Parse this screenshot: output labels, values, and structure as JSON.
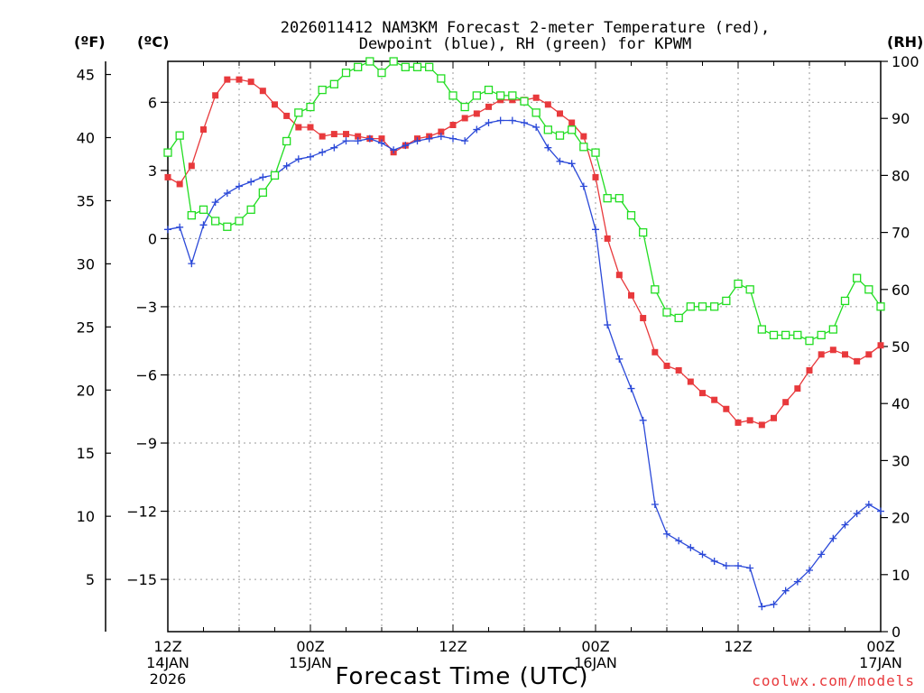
{
  "chart_data": {
    "type": "line",
    "title_lines": [
      "2026011412 NAM3KM Forecast 2-meter Temperature (red),",
      "Dewpoint (blue), RH (green) for KPWM"
    ],
    "units": {
      "fahrenheit": "(ºF)",
      "celsius": "(ºC)",
      "rh": "(RH)"
    },
    "xlabel": "Forecast Time (UTC)",
    "credit": "coolwx.com/models",
    "x_range_hours": [
      0,
      60
    ],
    "x_ticks": [
      {
        "hour": 0,
        "lines": [
          "12Z",
          "14JAN",
          "2026"
        ]
      },
      {
        "hour": 12,
        "lines": [
          "00Z",
          "15JAN"
        ]
      },
      {
        "hour": 24,
        "lines": [
          "12Z"
        ]
      },
      {
        "hour": 36,
        "lines": [
          "00Z",
          "16JAN"
        ]
      },
      {
        "hour": 48,
        "lines": [
          "12Z"
        ]
      },
      {
        "hour": 60,
        "lines": [
          "00Z",
          "17JAN"
        ]
      }
    ],
    "celsius_axis": {
      "range": [
        -17.3,
        7.8
      ],
      "ticks": [
        "6",
        "3",
        "0",
        "−3",
        "−6",
        "−9",
        "−12",
        "−15"
      ],
      "tick_values": [
        6,
        3,
        0,
        -3,
        -6,
        -9,
        -12,
        -15
      ]
    },
    "fahrenheit_axis": {
      "ticks": [
        "45",
        "40",
        "35",
        "30",
        "25",
        "20",
        "15",
        "10",
        "5"
      ],
      "tick_values": [
        45,
        40,
        35,
        30,
        25,
        20,
        15,
        10,
        5
      ]
    },
    "rh_axis": {
      "range": [
        0,
        100
      ],
      "ticks": [
        "100",
        "90",
        "80",
        "70",
        "60",
        "50",
        "40",
        "30",
        "20",
        "10",
        "0"
      ],
      "tick_values": [
        100,
        90,
        80,
        70,
        60,
        50,
        40,
        30,
        20,
        10,
        0
      ]
    },
    "grid": true,
    "series": [
      {
        "name": "Temperature",
        "unit": "C",
        "color": "#e8393c",
        "marker": "filled-square",
        "x": [
          0,
          1,
          2,
          3,
          4,
          5,
          6,
          7,
          8,
          9,
          10,
          11,
          12,
          13,
          14,
          15,
          16,
          17,
          18,
          19,
          20,
          21,
          22,
          23,
          24,
          25,
          26,
          27,
          28,
          29,
          30,
          31,
          32,
          33,
          34,
          35,
          36,
          37,
          38,
          39,
          40,
          41,
          42,
          43,
          44,
          45,
          46,
          47,
          48,
          49,
          50,
          51,
          52,
          53,
          54,
          55,
          56,
          57,
          58,
          59,
          60
        ],
        "values": [
          2.7,
          2.4,
          3.2,
          4.8,
          6.3,
          7.0,
          7.0,
          6.9,
          6.5,
          5.9,
          5.4,
          4.9,
          4.9,
          4.5,
          4.6,
          4.6,
          4.5,
          4.4,
          4.4,
          3.8,
          4.1,
          4.4,
          4.5,
          4.7,
          5.0,
          5.3,
          5.5,
          5.8,
          6.1,
          6.1,
          6.1,
          6.2,
          5.9,
          5.5,
          5.1,
          4.5,
          2.7,
          0.0,
          -1.6,
          -2.5,
          -3.5,
          -5.0,
          -5.6,
          -5.8,
          -6.3,
          -6.8,
          -7.1,
          -7.5,
          -8.1,
          -8.0,
          -8.2,
          -7.9,
          -7.2,
          -6.6,
          -5.8,
          -5.1,
          -4.9,
          -5.1,
          -5.4,
          -5.1,
          -4.7
        ]
      },
      {
        "name": "Dewpoint",
        "unit": "C",
        "color": "#2b49d8",
        "marker": "plus",
        "x": [
          0,
          1,
          2,
          3,
          4,
          5,
          6,
          7,
          8,
          9,
          10,
          11,
          12,
          13,
          14,
          15,
          16,
          17,
          18,
          19,
          20,
          21,
          22,
          23,
          24,
          25,
          26,
          27,
          28,
          29,
          30,
          31,
          32,
          33,
          34,
          35,
          36,
          37,
          38,
          39,
          40,
          41,
          42,
          43,
          44,
          45,
          46,
          47,
          48,
          49,
          50,
          51,
          52,
          53,
          54,
          55,
          56,
          57,
          58,
          59,
          60
        ],
        "values": [
          0.4,
          0.5,
          -1.1,
          0.6,
          1.6,
          2.0,
          2.3,
          2.5,
          2.7,
          2.8,
          3.2,
          3.5,
          3.6,
          3.8,
          4.0,
          4.3,
          4.3,
          4.4,
          4.2,
          3.9,
          4.1,
          4.3,
          4.4,
          4.5,
          4.4,
          4.3,
          4.8,
          5.1,
          5.2,
          5.2,
          5.1,
          4.9,
          4.0,
          3.4,
          3.3,
          2.3,
          0.4,
          -3.8,
          -5.3,
          -6.6,
          -8.0,
          -11.7,
          -13.0,
          -13.3,
          -13.6,
          -13.9,
          -14.2,
          -14.4,
          -14.4,
          -14.5,
          -16.2,
          -16.1,
          -15.5,
          -15.1,
          -14.6,
          -13.9,
          -13.2,
          -12.6,
          -12.1,
          -11.7,
          -12.0
        ]
      },
      {
        "name": "RH",
        "unit": "%",
        "color": "#22dd22",
        "marker": "open-square",
        "x": [
          0,
          1,
          2,
          3,
          4,
          5,
          6,
          7,
          8,
          9,
          10,
          11,
          12,
          13,
          14,
          15,
          16,
          17,
          18,
          19,
          20,
          21,
          22,
          23,
          24,
          25,
          26,
          27,
          28,
          29,
          30,
          31,
          32,
          33,
          34,
          35,
          36,
          37,
          38,
          39,
          40,
          41,
          42,
          43,
          44,
          45,
          46,
          47,
          48,
          49,
          50,
          51,
          52,
          53,
          54,
          55,
          56,
          57,
          58,
          59,
          60
        ],
        "values": [
          84,
          87,
          73,
          74,
          72,
          71,
          72,
          74,
          77,
          80,
          86,
          91,
          92,
          95,
          96,
          98,
          99,
          100,
          98,
          100,
          99,
          99,
          99,
          97,
          94,
          92,
          94,
          95,
          94,
          94,
          93,
          91,
          88,
          87,
          88,
          85,
          84,
          76,
          76,
          73,
          70,
          60,
          56,
          55,
          57,
          57,
          57,
          58,
          61,
          60,
          53,
          52,
          52,
          52,
          51,
          52,
          53,
          58,
          62,
          60,
          57
        ]
      }
    ]
  }
}
